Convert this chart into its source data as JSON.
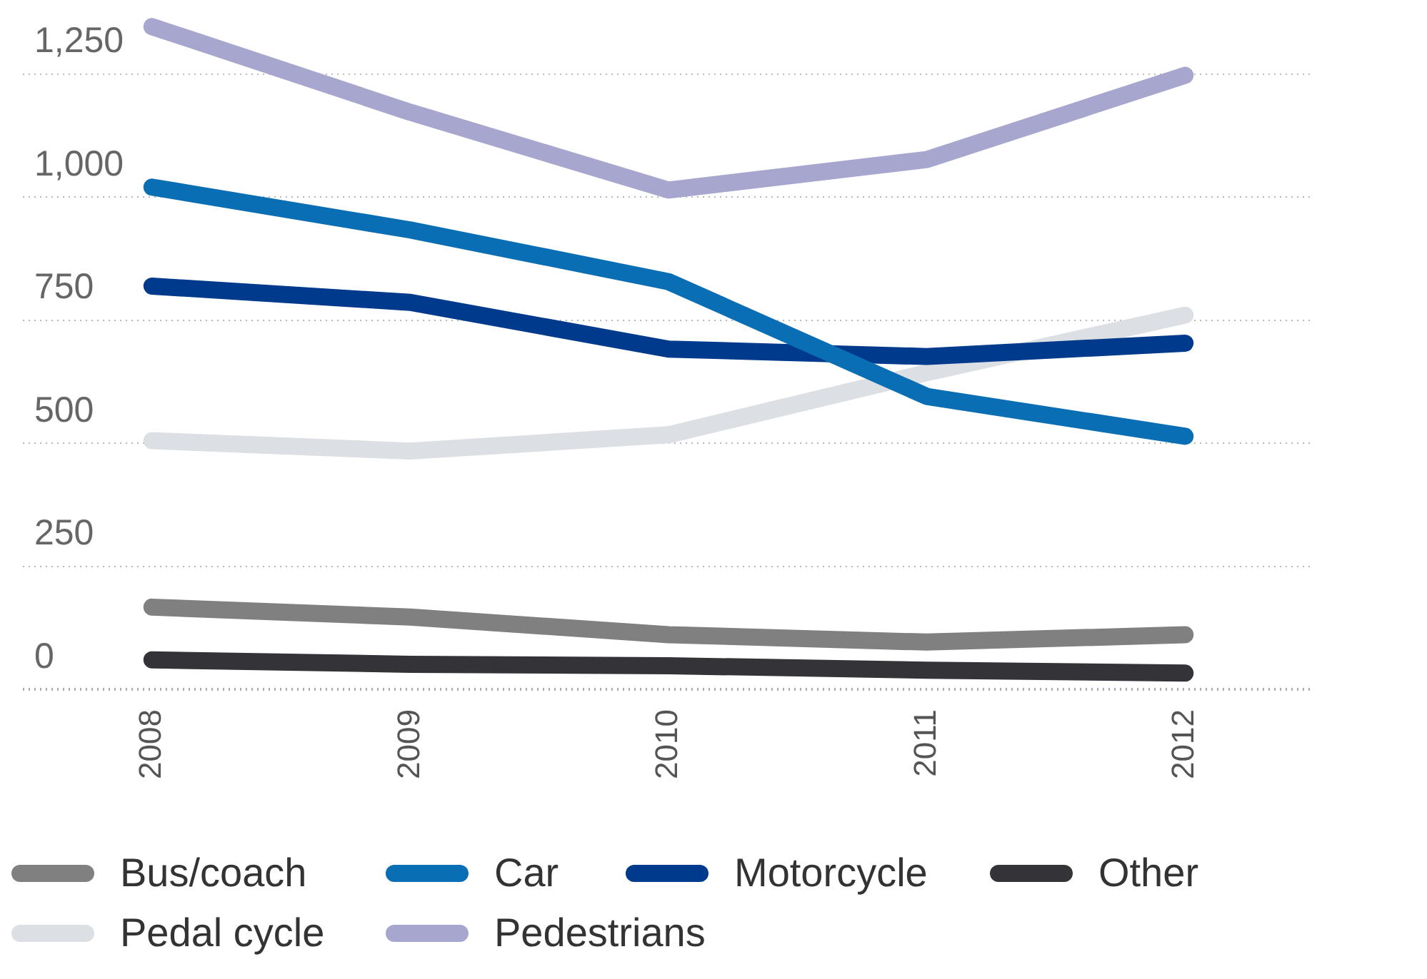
{
  "chart_data": {
    "type": "line",
    "categories": [
      "2008",
      "2009",
      "2010",
      "2011",
      "2012"
    ],
    "series": [
      {
        "name": "Bus/coach",
        "color": "#808080",
        "values": [
          167,
          147,
          111,
          96,
          111
        ]
      },
      {
        "name": "Car",
        "color": "#0a6eb4",
        "values": [
          1020,
          933,
          828,
          595,
          514
        ]
      },
      {
        "name": "Motorcycle",
        "color": "#003a8c",
        "values": [
          819,
          786,
          691,
          676,
          703
        ]
      },
      {
        "name": "Other",
        "color": "#333338",
        "values": [
          60,
          51,
          48,
          39,
          33
        ]
      },
      {
        "name": "Pedal cycle",
        "color": "#dcdfe3",
        "values": [
          505,
          484,
          517,
          643,
          760
        ]
      },
      {
        "name": "Pedestrians",
        "color": "#a6a6cf",
        "values": [
          1346,
          1172,
          1014,
          1076,
          1247
        ]
      }
    ],
    "ylim": [
      0,
      1400
    ],
    "yticks": [
      0,
      250,
      500,
      750,
      {
        "value": 1000,
        "label": "1,000"
      },
      {
        "value": 1250,
        "label": "1,250"
      }
    ],
    "grid": "y",
    "legend": "bottom",
    "marker": "none",
    "line_style": "solid"
  }
}
